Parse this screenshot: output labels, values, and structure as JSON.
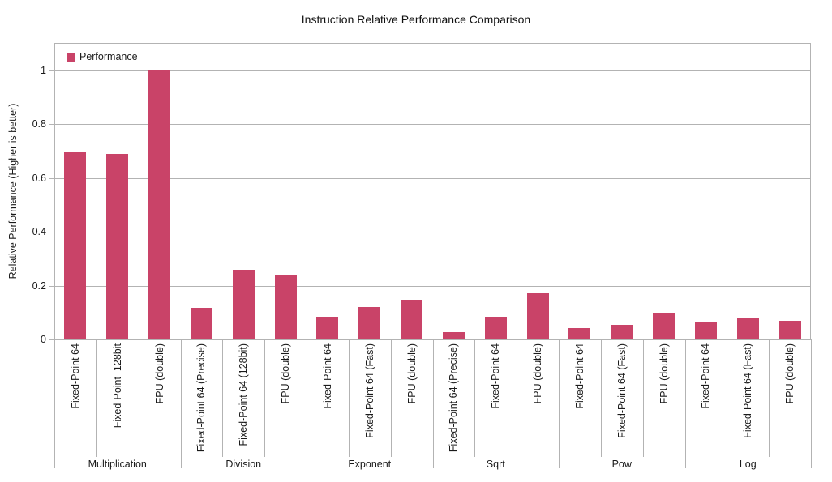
{
  "chart_data": {
    "type": "bar",
    "title": "Instruction Relative Performance Comparison",
    "xlabel": "",
    "ylabel": "Relative Performance (Higher is better)",
    "legend_label": "Performance",
    "legend_position": "top-left-inside",
    "bar_color": "#c94368",
    "grid_color": "#b3b3b3",
    "grid": "horizontal",
    "ylim": [
      0,
      1.1
    ],
    "yticks": [
      0,
      0.2,
      0.4,
      0.6,
      0.8,
      1
    ],
    "ytick_labels": [
      "0",
      "0.2",
      "0.4",
      "0.6",
      "0.8",
      "1"
    ],
    "groups": [
      {
        "label": "Multiplication",
        "bars": [
          {
            "label": "Fixed-Point 64",
            "value": 0.695
          },
          {
            "label": "Fixed-Point  128bit",
            "value": 0.689
          },
          {
            "label": "FPU (double)",
            "value": 1.0
          }
        ]
      },
      {
        "label": "Division",
        "bars": [
          {
            "label": "Fixed-Point 64 (Precise)",
            "value": 0.117
          },
          {
            "label": "Fixed-Point 64 (128bit)",
            "value": 0.26
          },
          {
            "label": "FPU (double)",
            "value": 0.238
          }
        ]
      },
      {
        "label": "Exponent",
        "bars": [
          {
            "label": "Fixed-Point 64",
            "value": 0.085
          },
          {
            "label": "Fixed-Point 64 (Fast)",
            "value": 0.119
          },
          {
            "label": "FPU (double)",
            "value": 0.148
          }
        ]
      },
      {
        "label": "Sqrt",
        "bars": [
          {
            "label": "Fixed-Point 64 (Precise)",
            "value": 0.027
          },
          {
            "label": "Fixed-Point 64",
            "value": 0.085
          },
          {
            "label": "FPU (double)",
            "value": 0.172
          }
        ]
      },
      {
        "label": "Pow",
        "bars": [
          {
            "label": "Fixed-Point 64",
            "value": 0.042
          },
          {
            "label": "Fixed-Point 64 (Fast)",
            "value": 0.054
          },
          {
            "label": "FPU (double)",
            "value": 0.1
          }
        ]
      },
      {
        "label": "Log",
        "bars": [
          {
            "label": "Fixed-Point 64",
            "value": 0.067
          },
          {
            "label": "Fixed-Point 64 (Fast)",
            "value": 0.079
          },
          {
            "label": "FPU (double)",
            "value": 0.07
          }
        ]
      }
    ]
  }
}
